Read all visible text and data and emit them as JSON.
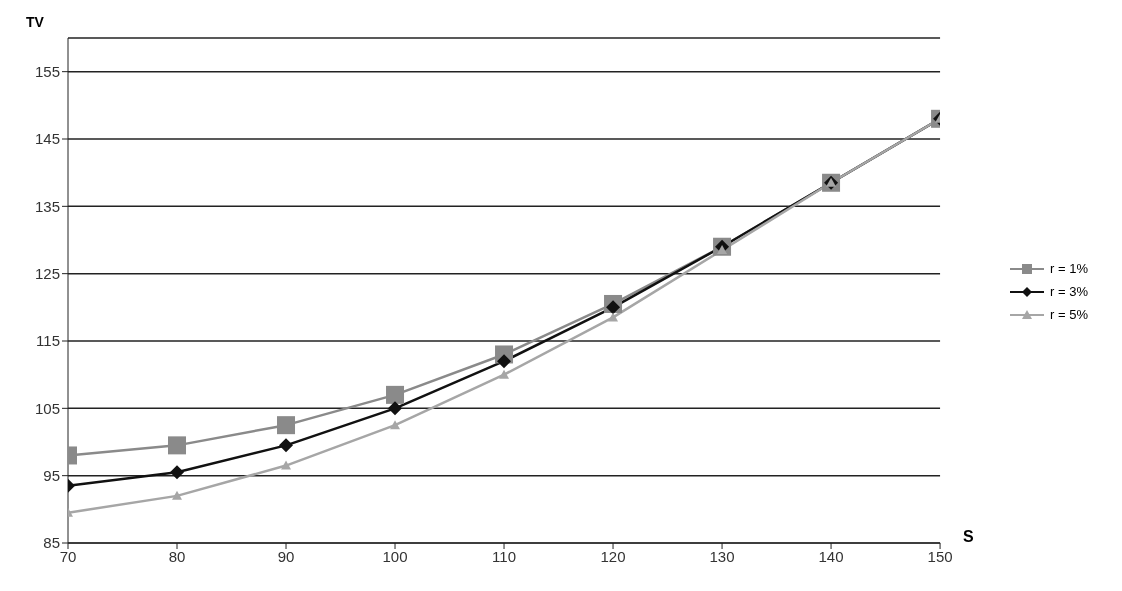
{
  "chart_data": {
    "type": "line",
    "xlabel": "S",
    "ylabel": "TV",
    "x": [
      70,
      80,
      90,
      100,
      110,
      120,
      130,
      140,
      150
    ],
    "series": [
      {
        "name": "r = 1%",
        "color": "#8a8a8a",
        "marker": "square",
        "values": [
          98,
          99.5,
          102.5,
          107,
          113,
          120.5,
          129,
          138.5,
          148
        ]
      },
      {
        "name": "r = 3%",
        "color": "#111111",
        "marker": "diamond",
        "values": [
          93.5,
          95.5,
          99.5,
          105,
          112,
          120,
          129,
          138.5,
          148
        ]
      },
      {
        "name": "r = 5%",
        "color": "#a6a6a6",
        "marker": "triangle",
        "values": [
          89.5,
          92,
          96.5,
          102.5,
          110,
          118.5,
          128.5,
          138.5,
          148
        ]
      }
    ],
    "xlim": [
      70,
      150
    ],
    "xticks": [
      70,
      80,
      90,
      100,
      110,
      120,
      130,
      140,
      150
    ],
    "ylim": [
      85,
      160
    ],
    "yticks": [
      85,
      95,
      105,
      115,
      125,
      135,
      145,
      155
    ],
    "grid": "y",
    "legend": "right"
  }
}
